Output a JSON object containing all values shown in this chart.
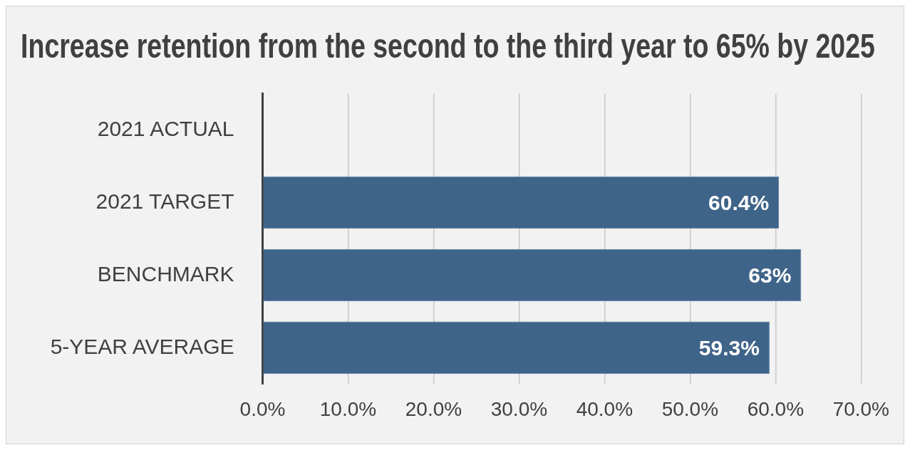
{
  "chart_data": {
    "type": "bar",
    "orientation": "horizontal",
    "title": "Increase retention from the second to the third year to 65% by 2025",
    "categories": [
      "2021 ACTUAL",
      "2021 TARGET",
      "BENCHMARK",
      "5-YEAR AVERAGE"
    ],
    "values": [
      null,
      60.4,
      63,
      59.3
    ],
    "value_labels": [
      null,
      "60.4%",
      "63%",
      "59.3%"
    ],
    "color": "#3f6489",
    "xlim": [
      0,
      70
    ],
    "xticks": [
      {
        "value": 0,
        "label": "0.0%"
      },
      {
        "value": 10,
        "label": "10.0%"
      },
      {
        "value": 20,
        "label": "20.0%"
      },
      {
        "value": 30,
        "label": "30.0%"
      },
      {
        "value": 40,
        "label": "40.0%"
      },
      {
        "value": 50,
        "label": "50.0%"
      },
      {
        "value": 60,
        "label": "60.0%"
      },
      {
        "value": 70,
        "label": "70.0%"
      }
    ],
    "grid": "x"
  }
}
